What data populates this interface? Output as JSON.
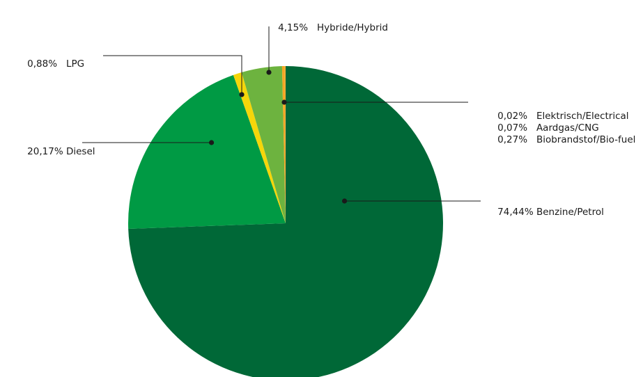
{
  "chart_data": {
    "type": "pie",
    "title": "",
    "start_angle_deg": 0,
    "direction": "clockwise",
    "slices": [
      {
        "label": "Benzine/Petrol",
        "percent_text": "74,44%",
        "value": 74.44,
        "color": "#006837"
      },
      {
        "label": "Diesel",
        "percent_text": "20,17%",
        "value": 20.17,
        "color": "#009a44"
      },
      {
        "label": "LPG",
        "percent_text": "0,88%",
        "value": 0.88,
        "color": "#f5d60a"
      },
      {
        "label": "Hybride/Hybrid",
        "percent_text": "4,15%",
        "value": 4.15,
        "color": "#6db33f"
      },
      {
        "label": "Biobrandstof/Bio-fuel",
        "percent_text": "0,27%",
        "value": 0.27,
        "color": "#f5a623"
      },
      {
        "label": "Aardgas/CNG",
        "percent_text": "0,07%",
        "value": 0.07,
        "color": "#f7941d"
      },
      {
        "label": "Elektrisch/Electrical",
        "percent_text": "0,02%",
        "value": 0.02,
        "color": "#f9c80e"
      }
    ]
  }
}
